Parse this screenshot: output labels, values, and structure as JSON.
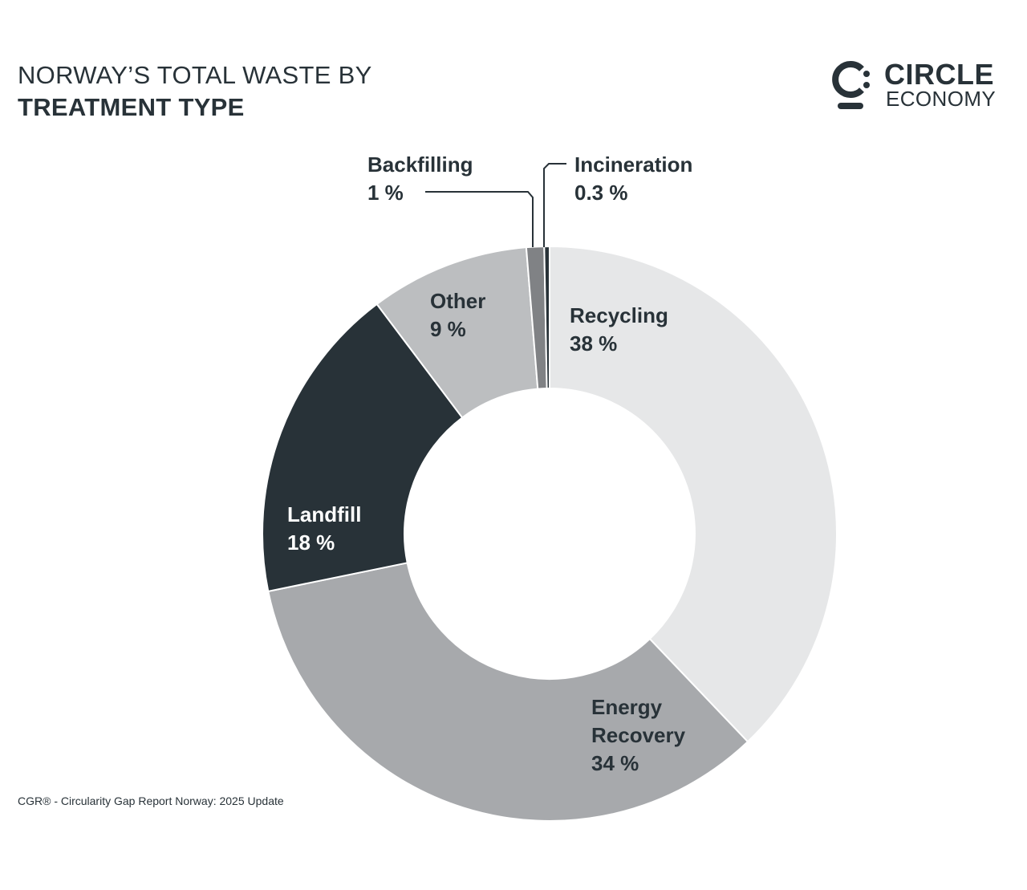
{
  "header": {
    "title_line1": "NORWAY’S TOTAL WASTE BY",
    "title_line2": "TREATMENT TYPE"
  },
  "logo": {
    "icon": "circle-economy-logo-icon",
    "line1": "CIRCLE",
    "line2": "ECONOMY"
  },
  "footer": {
    "source": "CGR® - Circularity Gap Report Norway: 2025 Update"
  },
  "chart_data": {
    "type": "pie",
    "donut": true,
    "title": "NORWAY’S TOTAL WASTE BY TREATMENT TYPE",
    "slices": [
      {
        "name": "Recycling",
        "value": 38,
        "display": "38 %",
        "color": "#e6e7e8",
        "text_color": "#283238"
      },
      {
        "name": "Energy Recovery",
        "value": 34,
        "display": "34 %",
        "color": "#a7a9ac",
        "text_color": "#283238"
      },
      {
        "name": "Landfill",
        "value": 18,
        "display": "18 %",
        "color": "#283238",
        "text_color": "#ffffff"
      },
      {
        "name": "Other",
        "value": 9,
        "display": "9 %",
        "color": "#bcbec0",
        "text_color": "#283238"
      },
      {
        "name": "Backfilling",
        "value": 1,
        "display": "1 %",
        "color": "#808285",
        "text_color": "#283238"
      },
      {
        "name": "Incineration",
        "value": 0.3,
        "display": "0.3 %",
        "color": "#283238",
        "text_color": "#283238"
      }
    ]
  }
}
